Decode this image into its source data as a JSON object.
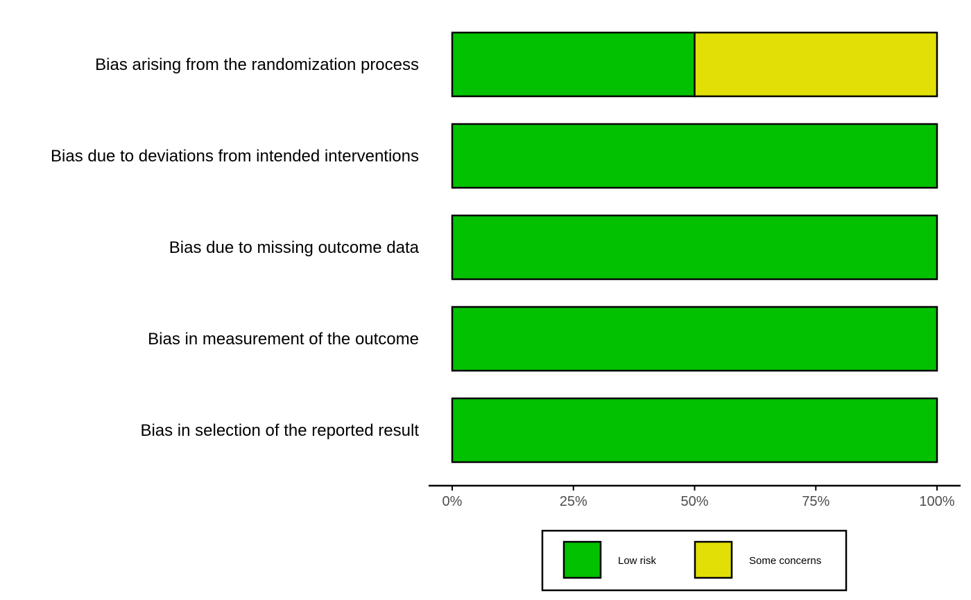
{
  "chart_data": {
    "type": "bar",
    "orientation": "horizontal",
    "stacked": true,
    "categories": [
      "Bias arising from the randomization process",
      "Bias due to deviations from intended interventions",
      "Bias due to missing outcome data",
      "Bias in measurement of the outcome",
      "Bias in selection of the reported result"
    ],
    "series": [
      {
        "name": "Low risk",
        "color": "#02C100",
        "values": [
          50,
          100,
          100,
          100,
          100
        ]
      },
      {
        "name": "Some concerns",
        "color": "#E2DF07",
        "values": [
          50,
          0,
          0,
          0,
          0
        ]
      }
    ],
    "xlim": [
      0,
      100
    ],
    "x_ticks": [
      0,
      25,
      50,
      75,
      100
    ],
    "x_tick_labels": [
      "0%",
      "25%",
      "50%",
      "75%",
      "100%"
    ],
    "title": "",
    "xlabel": "",
    "ylabel": "",
    "grid": false,
    "legend_position": "bottom"
  }
}
